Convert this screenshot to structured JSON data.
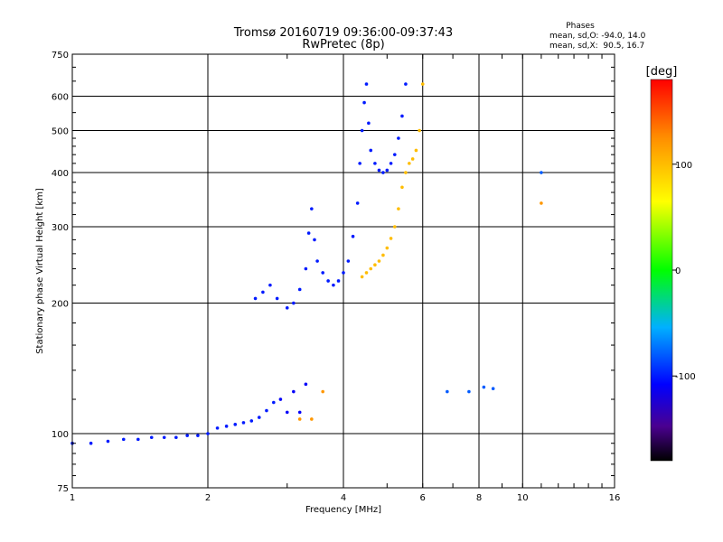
{
  "chart_data": {
    "type": "scatter",
    "title": "Tromsø 20160719 09:36:00-09:37:43",
    "subtitle": "RwPretec (8p)",
    "xlabel": "Frequency [MHz]",
    "ylabel": "Stationary phase Virtual Height [km]",
    "x_scale": "log",
    "y_scale": "log",
    "xlim": [
      1,
      16
    ],
    "ylim": [
      75,
      750
    ],
    "x_ticks": [
      1,
      2,
      4,
      6,
      8,
      10,
      16
    ],
    "x_tick_labels": [
      "1",
      "2",
      "4",
      "6",
      "8",
      "10",
      "16"
    ],
    "y_ticks": [
      75,
      100,
      200,
      300,
      400,
      500,
      600,
      750
    ],
    "y_tick_labels": [
      "75",
      "100",
      "200",
      "300",
      "400",
      "500",
      "600",
      "750"
    ],
    "grid": true,
    "phase_info": {
      "heading": "Phases",
      "line1": "mean, sd,O: -94.0, 14.0",
      "line2": "mean, sd,X:  90.5, 16.7"
    },
    "colorbar": {
      "label": "[deg]",
      "range": [
        -180,
        180
      ],
      "ticks": [
        100,
        0,
        -100
      ],
      "tick_labels": [
        "100",
        "0",
        "-100"
      ]
    },
    "traces": [
      {
        "phase": -100,
        "points": [
          [
            1.0,
            95
          ],
          [
            1.1,
            95
          ],
          [
            1.2,
            96
          ],
          [
            1.3,
            97
          ],
          [
            1.4,
            97
          ],
          [
            1.5,
            98
          ],
          [
            1.6,
            98
          ],
          [
            1.7,
            98
          ],
          [
            1.8,
            99
          ],
          [
            1.9,
            99
          ],
          [
            2.0,
            100
          ],
          [
            2.1,
            103
          ],
          [
            2.2,
            104
          ],
          [
            2.3,
            105
          ],
          [
            2.4,
            106
          ],
          [
            2.5,
            107
          ],
          [
            2.6,
            109
          ],
          [
            2.7,
            113
          ],
          [
            2.8,
            118
          ]
        ]
      },
      {
        "phase": -100,
        "points": [
          [
            2.55,
            205
          ],
          [
            2.65,
            212
          ],
          [
            2.75,
            220
          ],
          [
            2.85,
            205
          ],
          [
            3.0,
            195
          ],
          [
            3.1,
            200
          ],
          [
            3.2,
            215
          ],
          [
            3.3,
            240
          ],
          [
            3.35,
            290
          ],
          [
            3.4,
            330
          ],
          [
            3.45,
            280
          ],
          [
            3.5,
            250
          ],
          [
            3.6,
            235
          ],
          [
            3.7,
            225
          ],
          [
            3.8,
            220
          ],
          [
            3.9,
            225
          ],
          [
            4.0,
            235
          ],
          [
            4.1,
            250
          ],
          [
            4.2,
            285
          ],
          [
            4.3,
            340
          ],
          [
            4.35,
            420
          ],
          [
            4.4,
            500
          ],
          [
            4.45,
            580
          ],
          [
            4.5,
            640
          ],
          [
            4.55,
            520
          ],
          [
            4.6,
            450
          ],
          [
            4.7,
            420
          ],
          [
            4.8,
            405
          ],
          [
            4.9,
            400
          ],
          [
            5.0,
            405
          ],
          [
            5.1,
            420
          ],
          [
            5.2,
            440
          ],
          [
            5.3,
            480
          ],
          [
            5.4,
            540
          ],
          [
            5.5,
            640
          ]
        ]
      },
      {
        "phase": -110,
        "points": [
          [
            2.9,
            120
          ],
          [
            3.0,
            112
          ],
          [
            3.1,
            125
          ],
          [
            3.2,
            112
          ],
          [
            3.3,
            130
          ]
        ]
      },
      {
        "phase": 100,
        "points": [
          [
            4.4,
            230
          ],
          [
            4.5,
            235
          ],
          [
            4.6,
            240
          ],
          [
            4.7,
            245
          ],
          [
            4.8,
            250
          ],
          [
            4.9,
            258
          ],
          [
            5.0,
            268
          ],
          [
            5.1,
            282
          ],
          [
            5.2,
            300
          ],
          [
            5.3,
            330
          ],
          [
            5.4,
            370
          ],
          [
            5.5,
            400
          ],
          [
            5.6,
            420
          ],
          [
            5.7,
            430
          ],
          [
            5.8,
            450
          ],
          [
            5.9,
            500
          ],
          [
            6.0,
            640
          ]
        ]
      },
      {
        "phase": 120,
        "points": [
          [
            3.2,
            108
          ],
          [
            3.4,
            108
          ],
          [
            3.6,
            125
          ],
          [
            11.0,
            340
          ]
        ]
      },
      {
        "phase": -80,
        "points": [
          [
            6.8,
            125
          ],
          [
            7.6,
            125
          ],
          [
            8.2,
            128
          ],
          [
            8.6,
            127
          ],
          [
            11.0,
            400
          ]
        ]
      }
    ]
  }
}
